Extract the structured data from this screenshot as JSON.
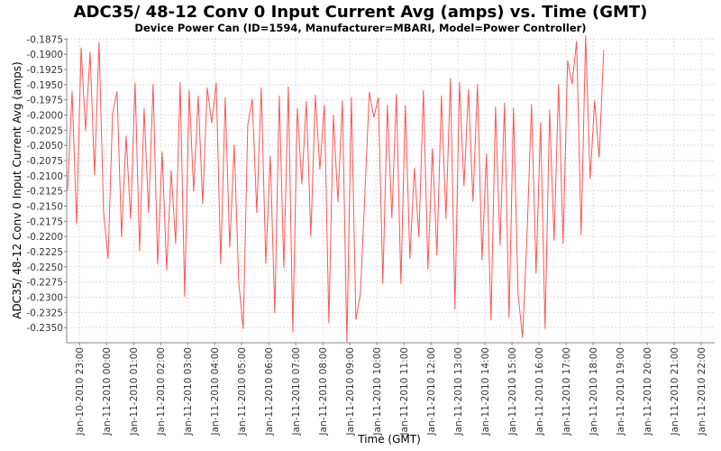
{
  "chart_data": {
    "type": "line",
    "title": "ADC35/ 48-12 Conv 0 Input Current Avg (amps) vs. Time (GMT)",
    "subtitle": "Device Power Can (ID=1594, Manufacturer=MBARI, Model=Power Controller)",
    "xlabel": "Time (GMT)",
    "ylabel": "ADC35/ 48-12 Conv 0 Input Current Avg (amps)",
    "ylim": [
      -0.2375,
      -0.1873
    ],
    "xlim_hours_from_first_tick": [
      -0.475,
      23.5
    ],
    "grid": true,
    "yticks": [
      "-0.1875",
      "-0.1900",
      "-0.1925",
      "-0.1950",
      "-0.1975",
      "-0.2000",
      "-0.2025",
      "-0.2050",
      "-0.2075",
      "-0.2100",
      "-0.2125",
      "-0.2150",
      "-0.2175",
      "-0.2200",
      "-0.2225",
      "-0.2250",
      "-0.2275",
      "-0.2300",
      "-0.2325",
      "-0.2350"
    ],
    "xticks": [
      "Jan-10-2010 23:00",
      "Jan-11-2010 00:00",
      "Jan-11-2010 01:00",
      "Jan-11-2010 02:00",
      "Jan-11-2010 03:00",
      "Jan-11-2010 04:00",
      "Jan-11-2010 05:00",
      "Jan-11-2010 06:00",
      "Jan-11-2010 07:00",
      "Jan-11-2010 08:00",
      "Jan-11-2010 09:00",
      "Jan-11-2010 10:00",
      "Jan-11-2010 11:00",
      "Jan-11-2010 12:00",
      "Jan-11-2010 13:00",
      "Jan-11-2010 14:00",
      "Jan-11-2010 15:00",
      "Jan-11-2010 16:00",
      "Jan-11-2010 17:00",
      "Jan-11-2010 18:00",
      "Jan-11-2010 19:00",
      "Jan-11-2010 20:00",
      "Jan-11-2010 21:00",
      "Jan-11-2010 22:00"
    ],
    "series": [
      {
        "name": "ADC35/ 48-12 Conv 0 Input Current Avg",
        "color": "#ff5555",
        "x_start_hours_from_first_tick": -0.443,
        "x_step_hours": 0.16667,
        "values": [
          -0.2123,
          -0.1961,
          -0.218,
          -0.1889,
          -0.2026,
          -0.1896,
          -0.2099,
          -0.188,
          -0.2159,
          -0.2237,
          -0.1998,
          -0.1961,
          -0.2201,
          -0.2034,
          -0.2171,
          -0.1947,
          -0.2224,
          -0.1989,
          -0.2161,
          -0.1949,
          -0.2246,
          -0.206,
          -0.2255,
          -0.2091,
          -0.2212,
          -0.1946,
          -0.2299,
          -0.1959,
          -0.2126,
          -0.1968,
          -0.2146,
          -0.1955,
          -0.2013,
          -0.1947,
          -0.2245,
          -0.1971,
          -0.2218,
          -0.2049,
          -0.2275,
          -0.2352,
          -0.2016,
          -0.1974,
          -0.2161,
          -0.1955,
          -0.2245,
          -0.2067,
          -0.2326,
          -0.1968,
          -0.2252,
          -0.1953,
          -0.2358,
          -0.1989,
          -0.2114,
          -0.1977,
          -0.22,
          -0.1967,
          -0.209,
          -0.1983,
          -0.2343,
          -0.2,
          -0.2143,
          -0.1976,
          -0.2374,
          -0.197,
          -0.2337,
          -0.2294,
          -0.2129,
          -0.1962,
          -0.2004,
          -0.1971,
          -0.2278,
          -0.1983,
          -0.217,
          -0.1965,
          -0.2278,
          -0.1983,
          -0.2237,
          -0.2087,
          -0.2201,
          -0.1959,
          -0.2254,
          -0.2055,
          -0.2231,
          -0.1968,
          -0.2171,
          -0.194,
          -0.232,
          -0.1946,
          -0.2117,
          -0.1958,
          -0.2143,
          -0.1949,
          -0.2239,
          -0.2064,
          -0.2338,
          -0.1986,
          -0.2215,
          -0.198,
          -0.2334,
          -0.1988,
          -0.2294,
          -0.2367,
          -0.2197,
          -0.1982,
          -0.2261,
          -0.2012,
          -0.2352,
          -0.1991,
          -0.2207,
          -0.1949,
          -0.2212,
          -0.191,
          -0.1949,
          -0.1878,
          -0.2198,
          -0.1869,
          -0.2105,
          -0.1976,
          -0.207,
          -0.1893
        ]
      }
    ]
  }
}
